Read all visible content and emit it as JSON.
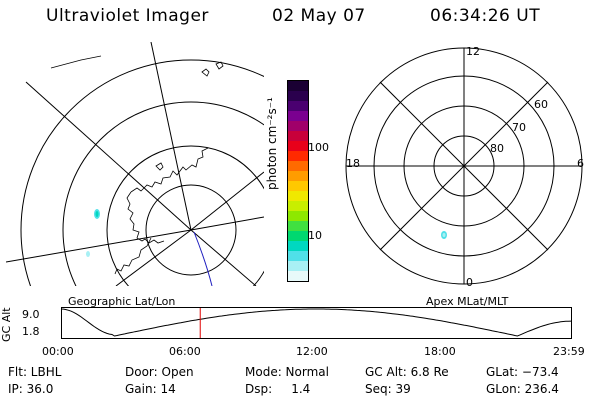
{
  "header": {
    "instrument": "Ultraviolet Imager",
    "date": "02 May 07",
    "time": "06:34:26 UT"
  },
  "colorbar": {
    "label": "photon cm⁻²s⁻¹",
    "tick_high": "100",
    "tick_low": "10",
    "colors": [
      "#1a0033",
      "#2a004d",
      "#4a0070",
      "#7a0090",
      "#a0006a",
      "#c8003a",
      "#e8001a",
      "#ff2a00",
      "#ff6a00",
      "#ff9c00",
      "#ffc800",
      "#f0e800",
      "#c8ee00",
      "#8ee800",
      "#40e040",
      "#00d870",
      "#00d8c0",
      "#50e0e8",
      "#a8f0f4",
      "#e8fafa"
    ]
  },
  "polar_plot": {
    "labels": {
      "top": "12",
      "left": "18",
      "right": "6",
      "bottom": "0"
    },
    "rings": [
      "60",
      "70",
      "80"
    ]
  },
  "orbit_panel": {
    "left_title": "Geographic Lat/Lon",
    "right_title": "Apex MLat/MLT",
    "axis_label": "GC Alt",
    "y_ticks": [
      "9.0",
      "1.8"
    ],
    "x_ticks": [
      "00:00",
      "06:00",
      "12:00",
      "18:00",
      "23:59"
    ],
    "marker_time_fraction": 0.273
  },
  "info": {
    "row1": {
      "flt": "Flt: LBHL",
      "door": "Door: Open",
      "mode": "Mode: Normal",
      "gcalt": "GC Alt: 6.8 Re",
      "glat": "GLat: −73.4"
    },
    "row2": {
      "ip": "IP: 36.0",
      "gain": "Gain: 14",
      "dsp": "Dsp:     1.4",
      "seq": "Seq: 39",
      "glon": "GLon: 236.4"
    }
  }
}
